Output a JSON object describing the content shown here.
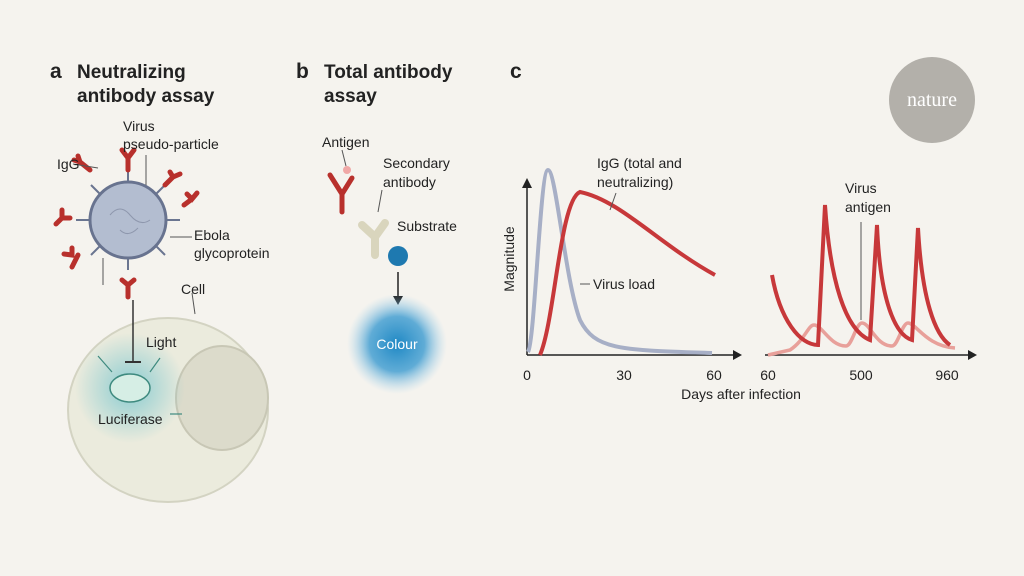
{
  "brand": "nature",
  "panel_a": {
    "letter": "a",
    "title_lines": [
      "Neutralizing",
      "antibody assay"
    ],
    "igg": "IgG",
    "virus_lines": [
      "Virus",
      "pseudo-particle"
    ],
    "glycoprotein_lines": [
      "Ebola",
      "glycoprotein"
    ],
    "cell": "Cell",
    "light": "Light",
    "luciferase": "Luciferase"
  },
  "panel_b": {
    "letter": "b",
    "title_lines": [
      "Total antibody",
      "assay"
    ],
    "antigen": "Antigen",
    "secondary_lines": [
      "Secondary",
      "antibody"
    ],
    "substrate": "Substrate",
    "colour": "Colour"
  },
  "panel_c": {
    "letter": "c",
    "y_label": "Magnitude",
    "x_label": "Days after infection",
    "left_ticks": [
      "0",
      "30",
      "60"
    ],
    "right_ticks": [
      "60",
      "500",
      "960"
    ],
    "igg_lines": [
      "IgG (total and",
      "neutralizing)"
    ],
    "virus_load": "Virus load",
    "antigen_lines": [
      "Virus",
      "antigen"
    ]
  }
}
